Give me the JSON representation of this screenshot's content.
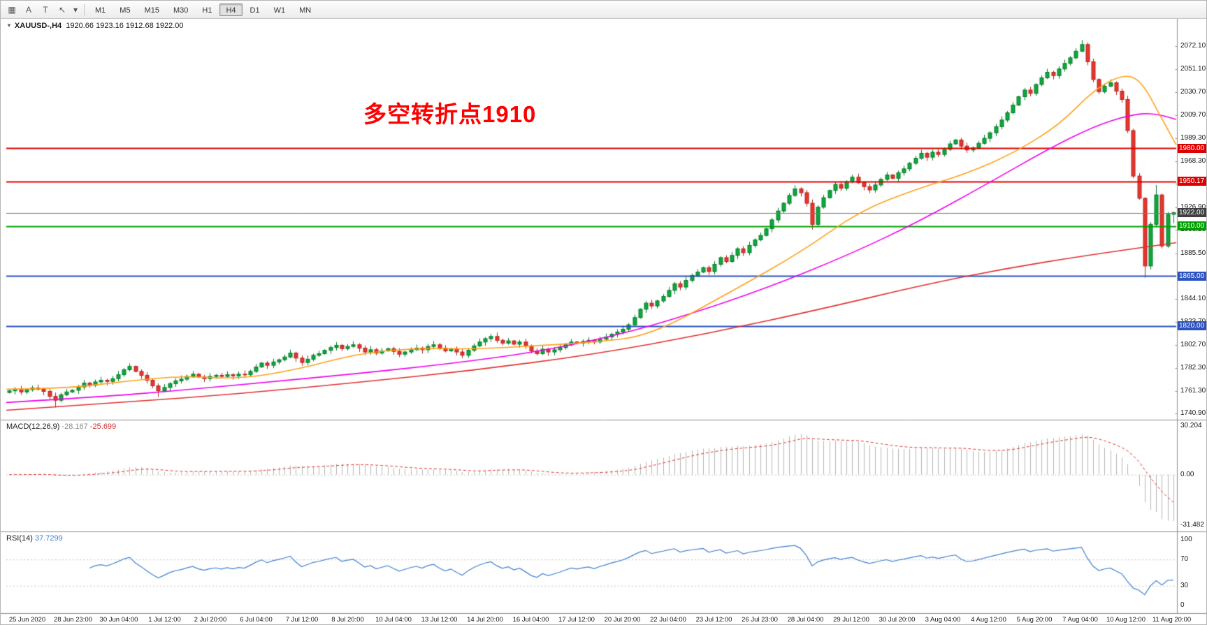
{
  "colors": {
    "candle_up": "#0ca93c",
    "candle_up_edge": "#067a29",
    "candle_down": "#e8352e",
    "candle_down_edge": "#b3241f",
    "ma_fast": "#ffa11a",
    "ma_mid": "#ee00ee",
    "ma_slow": "#e03030",
    "hline_red": "#dd0000",
    "hline_green": "#00a000",
    "hline_blue": "#2b52bd",
    "hline_gray": "#7a7a7a",
    "tag_dark": "#3f3f3f",
    "macd_hist": "#b4b4b4",
    "macd_signal": "#e03030",
    "rsi_line": "#3f7fd0",
    "axis_line": "#8e8e8e",
    "separator": "#8e8e8e",
    "annotation_red": "#fe0000"
  },
  "toolbar": {
    "icons": [
      {
        "name": "grid-icon",
        "glyph": "▦"
      },
      {
        "name": "label-a-icon",
        "glyph": "A"
      },
      {
        "name": "text-t-icon",
        "glyph": "T"
      },
      {
        "name": "arrow-tool-icon",
        "glyph": "↖"
      },
      {
        "name": "dropdown-caret-icon",
        "glyph": "▾"
      }
    ],
    "timeframes": [
      {
        "label": "M1",
        "active": false
      },
      {
        "label": "M5",
        "active": false
      },
      {
        "label": "M15",
        "active": false
      },
      {
        "label": "M30",
        "active": false
      },
      {
        "label": "H1",
        "active": false
      },
      {
        "label": "H4",
        "active": true
      },
      {
        "label": "D1",
        "active": false
      },
      {
        "label": "W1",
        "active": false
      },
      {
        "label": "MN",
        "active": false
      }
    ]
  },
  "chart": {
    "caret_glyph": "▼",
    "title": "XAUUSD-,H4",
    "ohlc_text": "1920.66 1923.16 1912.68 1922.00",
    "annotation": {
      "text": "多空转折点1910"
    }
  },
  "chart_data": {
    "type": "candlestick",
    "symbol": "XAUUSD-",
    "timeframe": "H4",
    "ohlc_current": {
      "open": 1920.66,
      "high": 1923.16,
      "low": 1912.68,
      "close": 1922.0
    },
    "price_range": {
      "min": 1735.5,
      "max": 2093.5
    },
    "closes": [
      1761.5,
      1763,
      1760.5,
      1762.5,
      1764,
      1763,
      1761,
      1756.5,
      1753,
      1758,
      1760.5,
      1762,
      1765,
      1768.5,
      1766.5,
      1769.5,
      1771,
      1770,
      1772.5,
      1776,
      1780.5,
      1783.5,
      1779,
      1775.5,
      1771,
      1766,
      1761.5,
      1764.5,
      1768,
      1770.5,
      1772,
      1774.5,
      1776.5,
      1774,
      1772.5,
      1774.5,
      1775.5,
      1774.5,
      1776,
      1775,
      1776.5,
      1776,
      1779,
      1783,
      1786.5,
      1784.5,
      1787.5,
      1789.5,
      1792,
      1795.5,
      1791,
      1787,
      1790,
      1793.5,
      1795,
      1798,
      1800.5,
      1802.5,
      1799.5,
      1801.5,
      1803,
      1800,
      1796.5,
      1798.5,
      1795.5,
      1797.5,
      1799.5,
      1797,
      1794.5,
      1796.5,
      1798.5,
      1800,
      1798.5,
      1801.5,
      1803,
      1800,
      1797.5,
      1799.5,
      1796.5,
      1793.5,
      1798,
      1802,
      1805.5,
      1808.5,
      1810.5,
      1807,
      1804.5,
      1806.5,
      1803.5,
      1805.5,
      1802,
      1797.5,
      1795,
      1799,
      1796.5,
      1798.5,
      1800.5,
      1803,
      1805.5,
      1804.5,
      1806,
      1807,
      1805.5,
      1808,
      1810,
      1812.5,
      1814.5,
      1817,
      1821,
      1827.5,
      1835,
      1840.5,
      1838,
      1842.5,
      1846.5,
      1852,
      1858,
      1855,
      1861,
      1865.5,
      1868.5,
      1872.5,
      1869,
      1875.5,
      1881.5,
      1878,
      1883.5,
      1889.5,
      1886,
      1892.5,
      1897.5,
      1901.5,
      1907.5,
      1915.5,
      1923.5,
      1930.5,
      1937.5,
      1943.5,
      1940,
      1930.5,
      1911.5,
      1927,
      1935.5,
      1942,
      1947.5,
      1944,
      1950,
      1954,
      1949,
      1945.5,
      1942.5,
      1947,
      1952,
      1956,
      1953,
      1958,
      1961.5,
      1966.5,
      1971,
      1975.5,
      1972,
      1976.5,
      1974.5,
      1979,
      1984,
      1987.5,
      1982,
      1978.5,
      1980.5,
      1984.5,
      1989,
      1994,
      1999.5,
      2005.5,
      2012,
      2019,
      2026.5,
      2032.5,
      2029.5,
      2037.5,
      2043.5,
      2048.5,
      2045.5,
      2051.5,
      2056.5,
      2061.5,
      2067.5,
      2073.5,
      2058,
      2042,
      2031,
      2036,
      2039,
      2031.5,
      2024,
      1996,
      1955,
      1935,
      1874,
      1911.5,
      1938,
      1892,
      1920.5,
      1922
    ],
    "wick_low_overrides": {
      "8": 1746.5,
      "26": 1756,
      "140": 1906.8,
      "198": 1863.4,
      "203": 1912.68
    },
    "wick_high_overrides": {
      "187": 2077.6,
      "200": 1947,
      "203": 1923.16
    },
    "price_axis_labels": [
      2072.1,
      2051.1,
      2030.7,
      2009.7,
      1989.3,
      1968.3,
      1947.9,
      1926.9,
      1906.5,
      1885.5,
      1844.1,
      1823.7,
      1802.7,
      1782.3,
      1761.3,
      1740.9
    ],
    "hlines": [
      {
        "price": 1980.0,
        "color": "#dd0000",
        "width": 2,
        "tag": "1980.00",
        "tag_bg": "#dd0000"
      },
      {
        "price": 1950.17,
        "color": "#dd0000",
        "width": 2,
        "tag": "1950.17",
        "tag_bg": "#dd0000"
      },
      {
        "price": 1922.0,
        "color": "#7a7a7a",
        "width": 1,
        "tag": "1922.00",
        "tag_bg": "#3f3f3f"
      },
      {
        "price": 1910.0,
        "color": "#00a000",
        "width": 2,
        "tag": "1910.00",
        "tag_bg": "#00a000"
      },
      {
        "price": 1865.0,
        "color": "#2b52bd",
        "width": 2,
        "tag": "1865.00",
        "tag_bg": "#2b52bd"
      },
      {
        "price": 1820.0,
        "color": "#2b52bd",
        "width": 2,
        "tag": "1820.00",
        "tag_bg": "#2b52bd"
      }
    ],
    "ma_lines": [
      {
        "name": "ma-slow-red",
        "color": "#e03030",
        "width": 1.6,
        "points": [
          [
            0,
            1744
          ],
          [
            0.1,
            1751
          ],
          [
            0.2,
            1759
          ],
          [
            0.3,
            1769
          ],
          [
            0.4,
            1780
          ],
          [
            0.5,
            1794
          ],
          [
            0.6,
            1813
          ],
          [
            0.7,
            1836
          ],
          [
            0.78,
            1856
          ],
          [
            0.85,
            1871
          ],
          [
            0.92,
            1883
          ],
          [
            1,
            1895
          ]
        ]
      },
      {
        "name": "ma-mid-magenta",
        "color": "#ee00ee",
        "width": 1.6,
        "points": [
          [
            0,
            1751
          ],
          [
            0.08,
            1756
          ],
          [
            0.15,
            1762
          ],
          [
            0.22,
            1769
          ],
          [
            0.3,
            1777
          ],
          [
            0.38,
            1786
          ],
          [
            0.45,
            1796
          ],
          [
            0.52,
            1811
          ],
          [
            0.58,
            1829
          ],
          [
            0.65,
            1854
          ],
          [
            0.72,
            1884
          ],
          [
            0.78,
            1914
          ],
          [
            0.84,
            1949
          ],
          [
            0.89,
            1979
          ],
          [
            0.93,
            2000
          ],
          [
            0.96,
            2010
          ],
          [
            0.98,
            2012
          ],
          [
            1,
            2006
          ]
        ]
      },
      {
        "name": "ma-fast-orange",
        "color": "#ffa11a",
        "width": 1.6,
        "points": [
          [
            0,
            1763
          ],
          [
            0.05,
            1763.5
          ],
          [
            0.1,
            1770
          ],
          [
            0.15,
            1775
          ],
          [
            0.2,
            1772
          ],
          [
            0.25,
            1781
          ],
          [
            0.3,
            1795
          ],
          [
            0.35,
            1800
          ],
          [
            0.4,
            1799
          ],
          [
            0.45,
            1802
          ],
          [
            0.5,
            1805
          ],
          [
            0.55,
            1811
          ],
          [
            0.62,
            1851
          ],
          [
            0.68,
            1887
          ],
          [
            0.73,
            1924
          ],
          [
            0.78,
            1944
          ],
          [
            0.82,
            1957
          ],
          [
            0.86,
            1975
          ],
          [
            0.9,
            2001
          ],
          [
            0.93,
            2033
          ],
          [
            0.955,
            2047
          ],
          [
            0.97,
            2041
          ],
          [
            0.985,
            2012
          ],
          [
            1,
            1983
          ]
        ]
      }
    ],
    "time_labels": [
      "25 Jun 2020",
      "28 Jun 23:00",
      "30 Jun 04:00",
      "1 Jul 12:00",
      "2 Jul 20:00",
      "6 Jul 04:00",
      "7 Jul 12:00",
      "8 Jul 20:00",
      "10 Jul 04:00",
      "13 Jul 12:00",
      "14 Jul 20:00",
      "16 Jul 04:00",
      "17 Jul 12:00",
      "20 Jul 20:00",
      "22 Jul 04:00",
      "23 Jul 12:00",
      "26 Jul 23:00",
      "28 Jul 04:00",
      "29 Jul 12:00",
      "30 Jul 20:00",
      "3 Aug 04:00",
      "4 Aug 12:00",
      "5 Aug 20:00",
      "7 Aug 04:00",
      "10 Aug 12:00",
      "11 Aug 20:00"
    ],
    "macd": {
      "title": "MACD(12,26,9)",
      "value_main": "-28.167",
      "value_signal": "-25.699",
      "fast": 12,
      "slow": 26,
      "signal": 9,
      "axis_labels": [
        {
          "text": "30.204",
          "value": 30.204
        },
        {
          "text": "0.00",
          "value": 0
        },
        {
          "text": "-31.482",
          "value": -31.482
        }
      ],
      "range": [
        -33.5,
        31.5
      ]
    },
    "rsi": {
      "title": "RSI(14)",
      "value": "37.7299",
      "period": 14,
      "levels": [
        {
          "text": "100",
          "value": 100
        },
        {
          "text": "70",
          "value": 70
        },
        {
          "text": "30",
          "value": 30
        },
        {
          "text": "0",
          "value": 0
        }
      ],
      "range": [
        0,
        100
      ]
    }
  }
}
